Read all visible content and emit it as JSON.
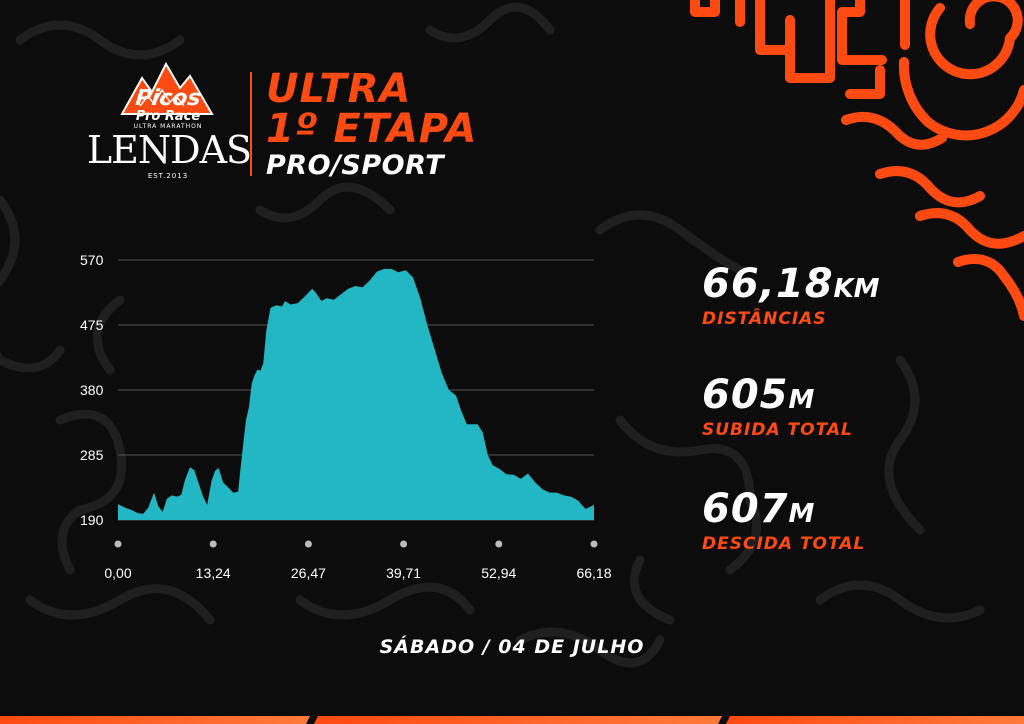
{
  "logo": {
    "picos": "Picos",
    "pro_race": "Pro Race",
    "ultra_marathon": "ULTRA MARATHON",
    "lendas": "LENDAS",
    "est": "EST.2013"
  },
  "title": {
    "line1": "ULTRA",
    "line2": "1º ETAPA",
    "line3": "PRO/SPORT"
  },
  "stats": [
    {
      "value": "66,18",
      "unit": "KM",
      "label": "DISTÂNCIAS"
    },
    {
      "value": "605",
      "unit": "M",
      "label": "SUBIDA TOTAL"
    },
    {
      "value": "607",
      "unit": "M",
      "label": "DESCIDA TOTAL"
    }
  ],
  "date": "SÁBADO / 04 DE JULHO",
  "colors": {
    "accent": "#ff4a12",
    "fill": "#22b7c3",
    "background": "#0c0c0c",
    "text": "#ffffff"
  },
  "chart_data": {
    "type": "area",
    "title": "",
    "xlabel": "",
    "ylabel": "",
    "xlim": [
      0,
      66.18
    ],
    "ylim": [
      190,
      570
    ],
    "y_ticks": [
      "570",
      "475",
      "380",
      "285",
      "190"
    ],
    "x_ticks": [
      "0,00",
      "13,24",
      "26,47",
      "39,71",
      "52,94",
      "66,18"
    ],
    "grid": true,
    "series": [
      {
        "x": [
          0,
          1,
          2,
          2.8,
          3.5,
          4.2,
          5.0,
          5.6,
          6.2,
          6.8,
          7.5,
          8.2,
          8.8,
          9.3,
          10.0,
          10.6,
          11.2,
          11.8,
          12.4,
          13.0,
          13.5,
          14.0,
          14.6,
          15.3,
          16.0,
          16.7,
          17.0,
          17.4,
          17.8,
          18.2,
          18.6,
          19.0,
          19.4,
          19.8,
          20.2,
          20.6,
          21.2,
          22.0,
          22.8,
          23.2,
          24.0,
          25.0,
          26.0,
          27.0,
          27.5,
          28.3,
          29.0,
          30.0,
          31.0,
          32.0,
          33.0,
          34.0,
          35.0,
          36.0,
          37.0,
          38.0,
          39.0,
          40.0,
          41.0,
          42.0,
          43.0,
          44.0,
          45.0,
          46.0,
          47.0,
          47.7,
          48.5,
          49.2,
          50.0,
          50.7,
          51.4,
          52.1,
          53.0,
          54.0,
          55.0,
          56.0,
          57.0,
          58.0,
          59.0,
          60.0,
          61.0,
          62.0,
          63.0,
          64.0,
          65.0,
          66.18
        ],
        "y": [
          213,
          208,
          204,
          200,
          199,
          208,
          230,
          210,
          202,
          221,
          226,
          224,
          227,
          248,
          267,
          263,
          244,
          225,
          212,
          247,
          262,
          266,
          245,
          238,
          230,
          231,
          262,
          300,
          336,
          355,
          390,
          402,
          410,
          408,
          419,
          466,
          500,
          504,
          502,
          510,
          505,
          507,
          517,
          528,
          522,
          510,
          514,
          512,
          520,
          528,
          532,
          530,
          540,
          553,
          557,
          557,
          552,
          555,
          545,
          515,
          475,
          440,
          405,
          380,
          372,
          350,
          330,
          330,
          330,
          318,
          285,
          270,
          265,
          257,
          256,
          250,
          258,
          245,
          235,
          230,
          230,
          226,
          224,
          218,
          206,
          212
        ]
      }
    ]
  }
}
